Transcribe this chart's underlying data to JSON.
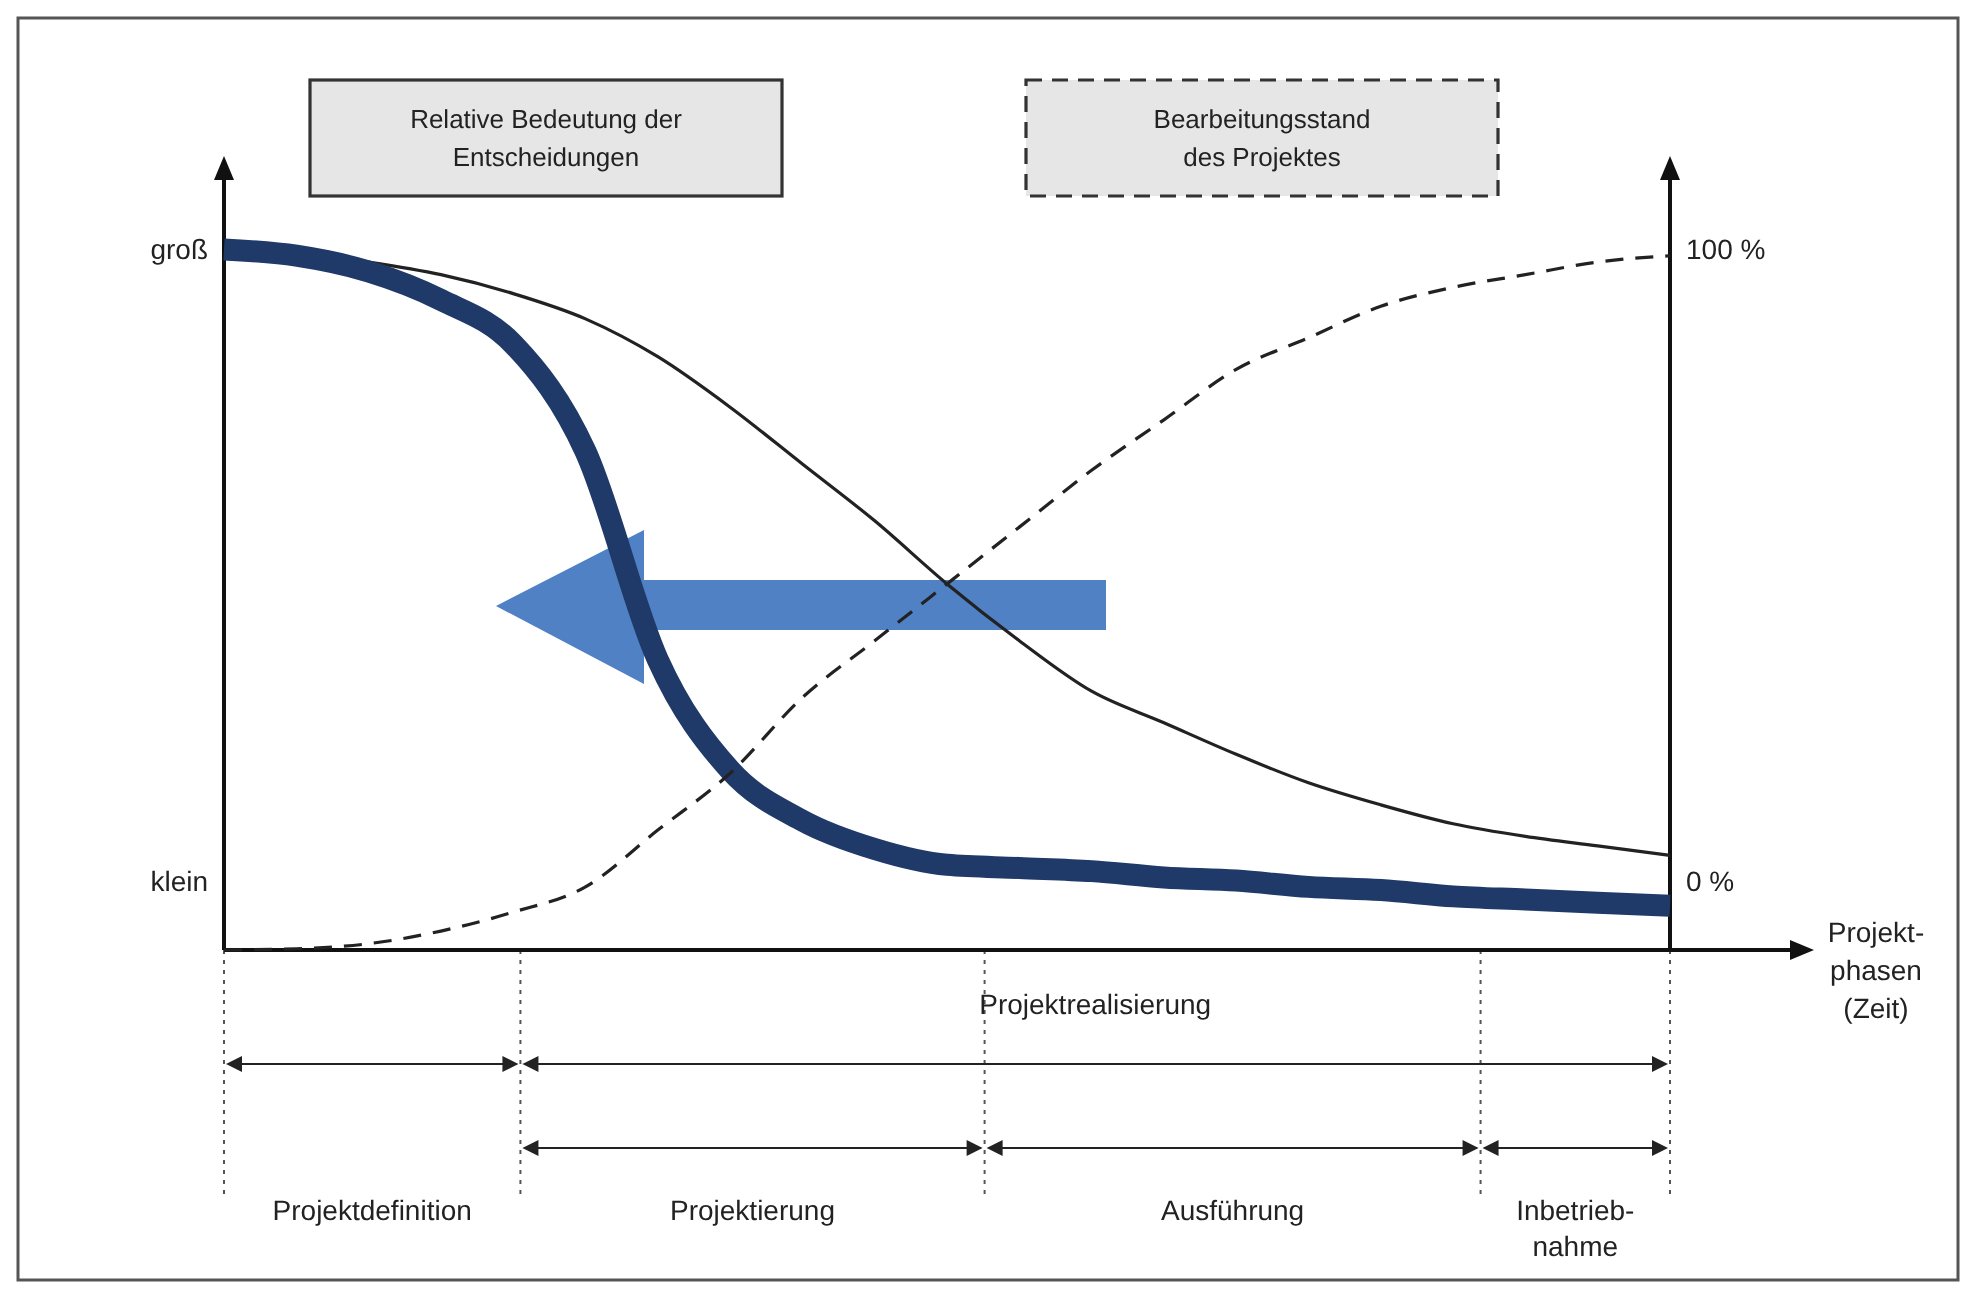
{
  "chart_data": {
    "type": "line",
    "xlabel": "Projekt-\nphasen\n(Zeit)",
    "categories": [
      null,
      null,
      null,
      null,
      null,
      null,
      null,
      null,
      null,
      null,
      null,
      null,
      null,
      null,
      null,
      null,
      null,
      null,
      null,
      null,
      null
    ],
    "ylim": [
      -11,
      111
    ],
    "yticks": [
      {
        "value": 0,
        "label": "0 %"
      },
      {
        "value": 100,
        "label": "100 %"
      }
    ],
    "series": [
      {
        "color": "#222222",
        "line_style": "solid",
        "values": [
          100,
          99.5,
          98,
          96,
          93,
          89,
          83,
          75,
          66,
          57,
          47,
          38,
          30,
          25,
          20,
          15.5,
          12,
          9,
          7,
          5.5,
          4
        ]
      },
      {
        "color": "#1f3a68",
        "line_style": "solid",
        "values": [
          100,
          99,
          96.5,
          92,
          85,
          68,
          35,
          17.5,
          9.5,
          5,
          2.5,
          2,
          1.5,
          0.5,
          0,
          -1,
          -1.5,
          -2.5,
          -3,
          -3.5,
          -4
        ]
      },
      {
        "color": "#222222",
        "line_style": "dashed",
        "values": [
          -11,
          -10.8,
          -10,
          -8,
          -5,
          -1,
          8,
          17,
          29,
          38,
          47,
          56,
          65,
          73,
          81,
          86,
          91,
          94,
          96,
          98,
          99
        ]
      }
    ],
    "annotations": [
      "groß",
      "klein",
      "Relative Bedeutung der\nEntscheidungen",
      "Bearbeitungsstand\ndes Projektes",
      "Projektrealisierung",
      "Projektdefinition",
      "Projektierung",
      "Ausführung",
      "Inbetrieb-\nnahme"
    ]
  }
}
